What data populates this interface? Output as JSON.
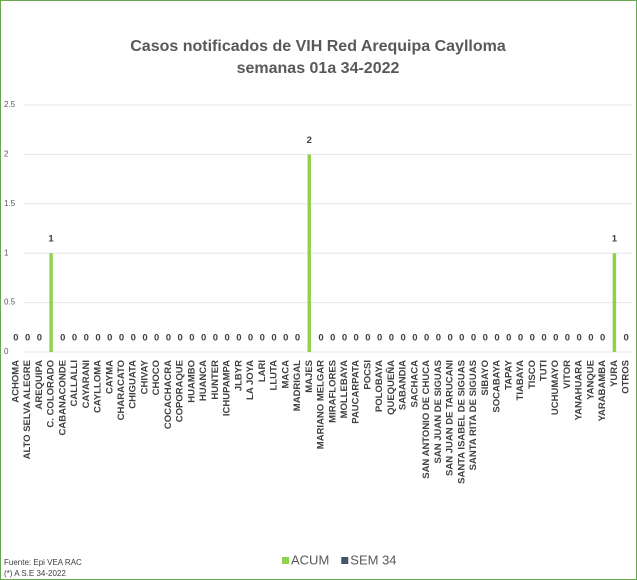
{
  "chart_data": {
    "type": "bar",
    "title": "Casos notificados de VIH Red Arequipa Caylloma",
    "subtitle": "semanas 01a 34-2022",
    "categories": [
      "ACHOMA",
      "ALTO SELVA ALEGRE",
      "AREQUIPA",
      "C. COLORADO",
      "CABANACONDE",
      "CALLALLI",
      "CAYARANI",
      "CAYLLOMA",
      "CAYMA",
      "CHARACATO",
      "CHIGUATA",
      "CHIVAY",
      "CHOCO",
      "COCACHACRA",
      "COPORAQUE",
      "HUAMBO",
      "HUANCA",
      "HUNTER",
      "ICHUPAMPA",
      "JLBYR",
      "LA JOYA",
      "LARI",
      "LLUTA",
      "MACA",
      "MADRIGAL",
      "MAJES",
      "MARIANO MELGAR",
      "MIRAFLORES",
      "MOLLEBAYA",
      "PAUCARPATA",
      "POCSI",
      "POLOBAYA",
      "QUEQUEÑA",
      "SABANDIA",
      "SACHACA",
      "SAN ANTONIO DE CHUCA",
      "SAN JUAN DE SIGUAS",
      "SAN JUAN DE TARUCANI",
      "SANTA ISABEL DE SIGUAS",
      "SANTA RITA DE SIGUAS",
      "SIBAYO",
      "SOCABAYA",
      "TAPAY",
      "TIABAYA",
      "TISCO",
      "TUTI",
      "UCHUMAYO",
      "VITOR",
      "YANAHUARA",
      "YANQUE",
      "YARABAMBA",
      "YURA",
      "OTROS"
    ],
    "series": [
      {
        "name": "ACUM",
        "color": "#92d050",
        "values": [
          0,
          0,
          0,
          1,
          0,
          0,
          0,
          0,
          0,
          0,
          0,
          0,
          0,
          0,
          0,
          0,
          0,
          0,
          0,
          0,
          0,
          0,
          0,
          0,
          0,
          2,
          0,
          0,
          0,
          0,
          0,
          0,
          0,
          0,
          0,
          0,
          0,
          0,
          0,
          0,
          0,
          0,
          0,
          0,
          0,
          0,
          0,
          0,
          0,
          0,
          0,
          1,
          0
        ]
      },
      {
        "name": "SEM 34",
        "color": "#44546a",
        "values": [
          null,
          null,
          null,
          null,
          null,
          null,
          null,
          null,
          null,
          null,
          null,
          null,
          null,
          null,
          null,
          null,
          null,
          null,
          null,
          null,
          null,
          null,
          null,
          null,
          null,
          null,
          null,
          null,
          null,
          null,
          null,
          null,
          null,
          null,
          null,
          null,
          null,
          null,
          null,
          null,
          null,
          null,
          null,
          null,
          null,
          null,
          null,
          null,
          null,
          null,
          null,
          null,
          null
        ]
      }
    ],
    "ylim": [
      0,
      2.5
    ],
    "yticks": [
      0,
      0.5,
      1,
      1.5,
      2,
      2.5
    ],
    "grid": true,
    "legend": "bottom",
    "source": "Fuente: Epi VEA RAC",
    "note": "(*) A S.E 34-2022"
  }
}
